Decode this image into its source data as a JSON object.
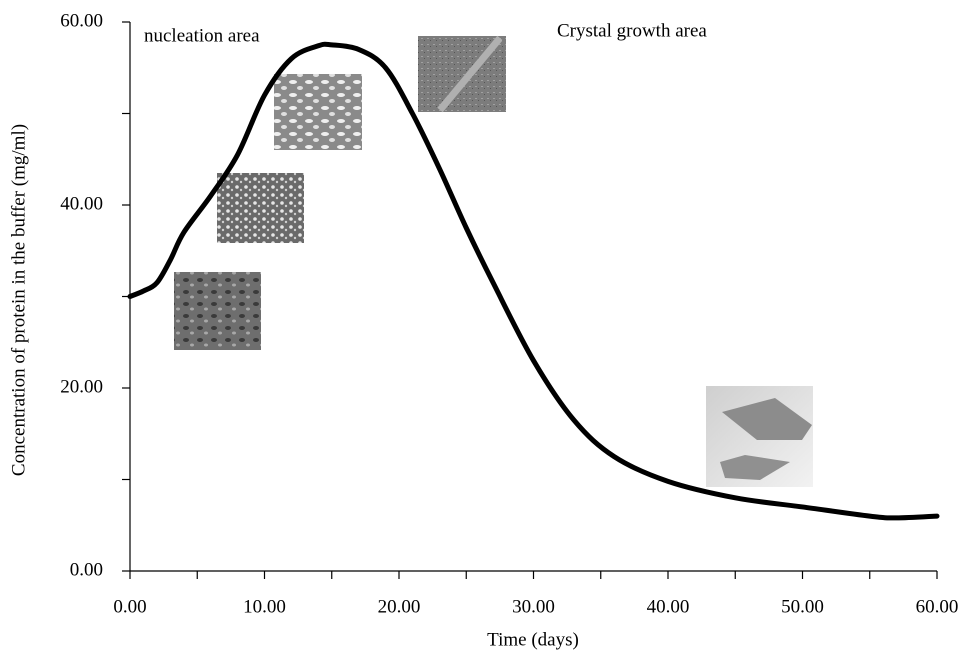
{
  "chart_data": {
    "type": "line",
    "xlabel": "Time (days)",
    "ylabel": "Concentration of protein in the buffer (mg/ml)",
    "annotations": [
      "nucleation area",
      "Crystal growth area"
    ],
    "x": [
      0,
      1,
      2,
      3,
      4,
      6,
      8,
      10,
      12,
      14,
      15,
      17,
      19,
      21,
      23,
      25,
      27,
      30,
      33,
      36,
      40,
      45,
      50,
      55,
      57,
      60
    ],
    "values": [
      30,
      30.6,
      31.5,
      34,
      37,
      41,
      45.5,
      52,
      56,
      57.4,
      57.5,
      57,
      55,
      50,
      44,
      37.5,
      31.5,
      23,
      16.5,
      12.5,
      9.8,
      8,
      7,
      6,
      5.8,
      6
    ],
    "color": "#000000",
    "xlim": [
      0,
      60
    ],
    "ylim": [
      0,
      60
    ],
    "xticks": [
      {
        "value": 0,
        "label": "0.00"
      },
      {
        "value": 10,
        "label": "10.00"
      },
      {
        "value": 20,
        "label": "20.00"
      },
      {
        "value": 30,
        "label": "30.00"
      },
      {
        "value": 40,
        "label": "40.00"
      },
      {
        "value": 50,
        "label": "50.00"
      },
      {
        "value": 60,
        "label": "60.00"
      }
    ],
    "xminorticks": [
      5,
      15,
      25,
      35,
      45,
      55
    ],
    "yticks": [
      {
        "value": 0,
        "label": "0.00"
      },
      {
        "value": 20,
        "label": "20.00"
      },
      {
        "value": 40,
        "label": "40.00"
      },
      {
        "value": 60,
        "label": "60.00"
      }
    ],
    "yminorticks": [
      10,
      30,
      50
    ],
    "grid": false
  }
}
